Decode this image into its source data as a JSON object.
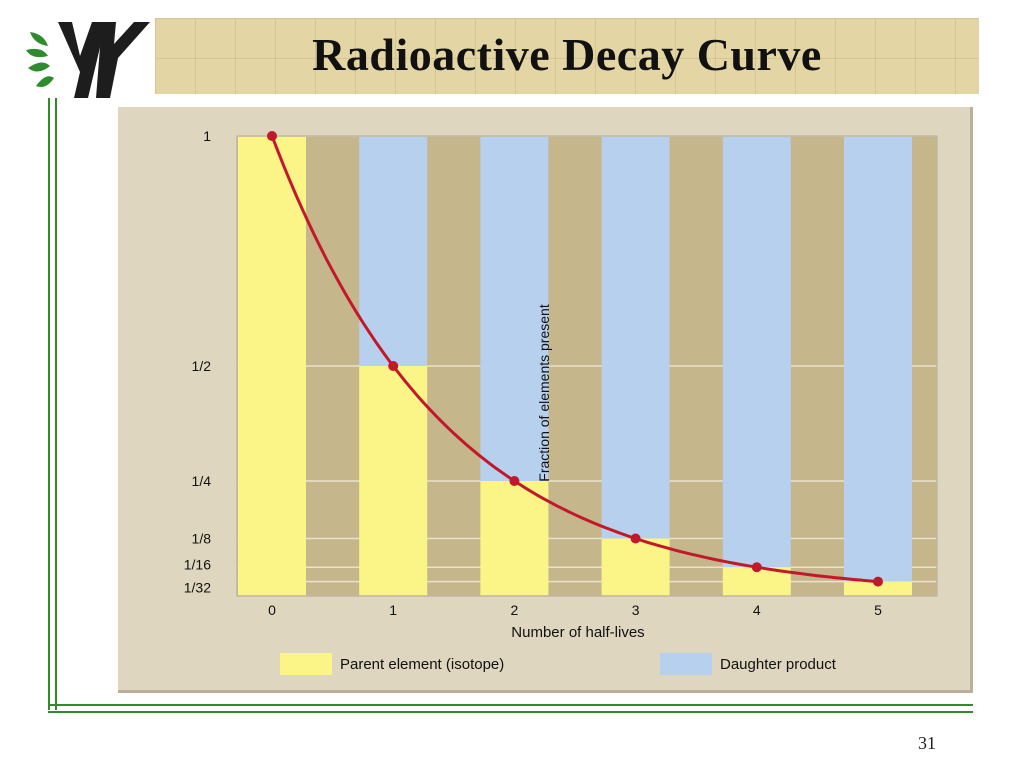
{
  "slide": {
    "title": "Radioactive Decay Curve",
    "page_number": "31"
  },
  "colors": {
    "parent": "#fbf588",
    "daughter": "#b6d0ee",
    "column_bg": "#c5b68c",
    "curve": "#c2182b",
    "frame": "#2f8d23"
  },
  "chart_data": {
    "type": "bar",
    "title": "",
    "xlabel": "Number of half-lives",
    "ylabel": "Fraction of elements present",
    "categories": [
      "0",
      "1",
      "2",
      "3",
      "4",
      "5"
    ],
    "series": [
      {
        "name": "Parent element (isotope)",
        "values": [
          1,
          0.5,
          0.25,
          0.125,
          0.0625,
          0.03125
        ]
      },
      {
        "name": "Daughter product",
        "values": [
          0,
          0.5,
          0.75,
          0.875,
          0.9375,
          0.96875
        ]
      }
    ],
    "curve": {
      "x": [
        0,
        1,
        2,
        3,
        4,
        5
      ],
      "y": [
        1,
        0.5,
        0.25,
        0.125,
        0.0625,
        0.03125
      ]
    },
    "y_ticks": [
      {
        "value": 1,
        "label": "1"
      },
      {
        "value": 0.5,
        "label": "1/2"
      },
      {
        "value": 0.25,
        "label": "1/4"
      },
      {
        "value": 0.125,
        "label": "1/8"
      },
      {
        "value": 0.0625,
        "label": "1/16"
      },
      {
        "value": 0.03125,
        "label": "1/32"
      }
    ],
    "ylim": [
      0,
      1
    ],
    "legend_position": "bottom"
  }
}
